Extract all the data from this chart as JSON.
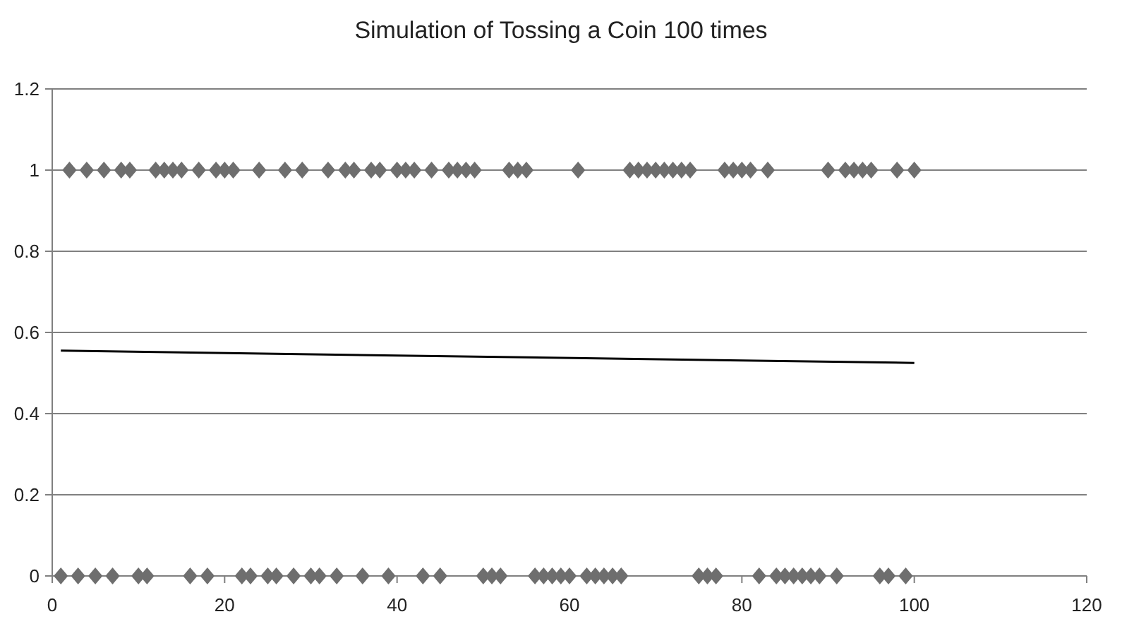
{
  "chart_data": {
    "type": "scatter",
    "title": "Simulation of Tossing a Coin 100 times",
    "series": [
      {
        "color": "#6e6e6e",
        "marker": "diamond",
        "x": [
          1,
          2,
          3,
          4,
          5,
          6,
          7,
          8,
          9,
          10,
          11,
          12,
          13,
          14,
          15,
          16,
          17,
          18,
          19,
          20,
          21,
          22,
          23,
          24,
          25,
          26,
          27,
          28,
          29,
          30,
          31,
          32,
          33,
          34,
          35,
          36,
          37,
          38,
          39,
          40,
          41,
          42,
          43,
          44,
          45,
          46,
          47,
          48,
          49,
          50,
          51,
          52,
          53,
          54,
          55,
          56,
          57,
          58,
          59,
          60,
          61,
          62,
          63,
          64,
          65,
          66,
          67,
          68,
          69,
          70,
          71,
          72,
          73,
          74,
          75,
          76,
          77,
          78,
          79,
          80,
          81,
          82,
          83,
          84,
          85,
          86,
          87,
          88,
          89,
          90,
          91,
          92,
          93,
          94,
          95,
          96,
          97,
          98,
          99,
          100
        ],
        "values": [
          0,
          1,
          0,
          1,
          0,
          1,
          0,
          1,
          1,
          0,
          0,
          1,
          1,
          1,
          1,
          0,
          1,
          0,
          1,
          1,
          1,
          0,
          0,
          1,
          0,
          0,
          1,
          0,
          1,
          0,
          0,
          1,
          0,
          1,
          1,
          0,
          1,
          1,
          0,
          1,
          1,
          1,
          0,
          1,
          0,
          1,
          1,
          1,
          1,
          0,
          0,
          0,
          1,
          1,
          1,
          0,
          0,
          0,
          0,
          0,
          1,
          0,
          0,
          0,
          0,
          0,
          1,
          1,
          1,
          1,
          1,
          1,
          1,
          1,
          0,
          0,
          0,
          1,
          1,
          1,
          1,
          0,
          1,
          0,
          0,
          0,
          0,
          0,
          0,
          1,
          0,
          1,
          1,
          1,
          1,
          0,
          0,
          1,
          0,
          1
        ]
      },
      {
        "type": "line",
        "color": "#000000",
        "marker": "none",
        "line_style": "solid",
        "x": [
          1,
          100
        ],
        "values": [
          0.555,
          0.525
        ]
      }
    ],
    "xlim": [
      0,
      120
    ],
    "xticks": [
      0,
      20,
      40,
      60,
      80,
      100,
      120
    ],
    "ylim": [
      0,
      1.2
    ],
    "yticks": [
      0,
      0.2,
      0.4,
      0.6,
      0.8,
      1,
      1.2
    ],
    "grid": "y"
  }
}
